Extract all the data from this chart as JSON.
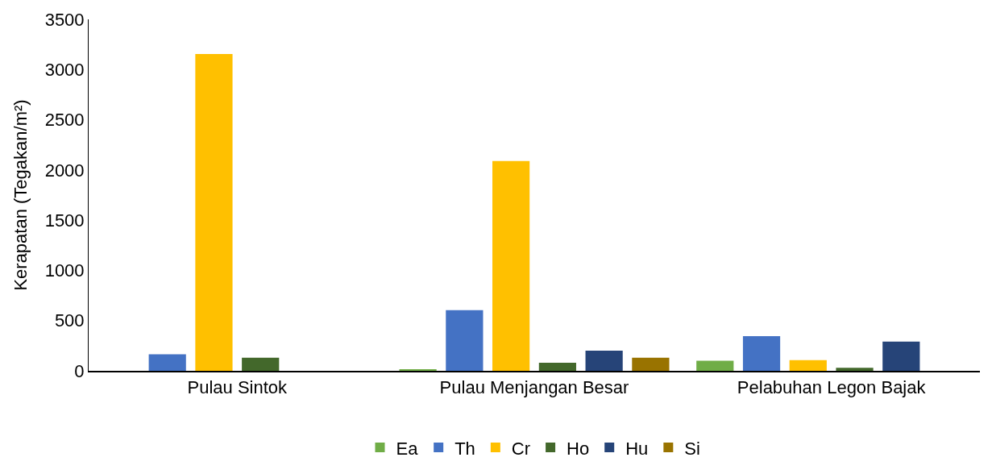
{
  "chart_data": {
    "type": "bar",
    "ylabel": "Kerapatan (Tegakan/m²)",
    "categories": [
      "Pulau Sintok",
      "Pulau Menjangan Besar",
      "Pelabuhan Legon Bajak"
    ],
    "series": [
      {
        "name": "Ea",
        "color": "#70ad47",
        "values": [
          0,
          15,
          100
        ]
      },
      {
        "name": "Th",
        "color": "#4472c4",
        "values": [
          165,
          605,
          345
        ]
      },
      {
        "name": "Cr",
        "color": "#ffc000",
        "values": [
          3155,
          2090,
          107
        ]
      },
      {
        "name": "Ho",
        "color": "#43682b",
        "values": [
          130,
          80,
          30
        ]
      },
      {
        "name": "Hu",
        "color": "#264478",
        "values": [
          0,
          200,
          290
        ]
      },
      {
        "name": "Si",
        "color": "#997300",
        "values": [
          0,
          130,
          0
        ]
      }
    ],
    "ylim": [
      0,
      3500
    ],
    "yticks": [
      0,
      500,
      1000,
      1500,
      2000,
      2500,
      3000,
      3500
    ],
    "grid": false,
    "legend": "bottom"
  }
}
